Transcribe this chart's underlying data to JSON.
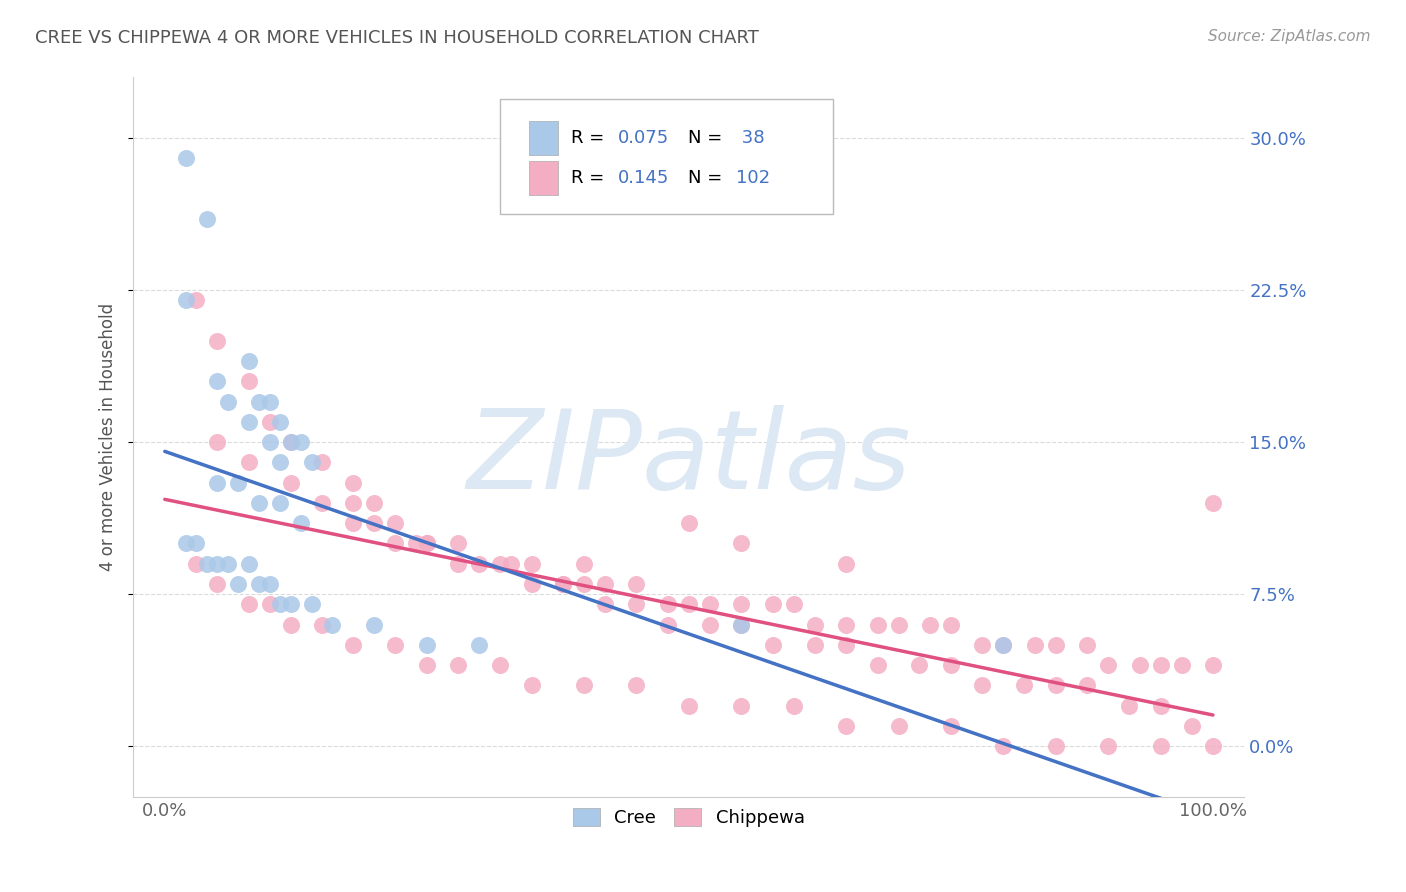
{
  "title": "CREE VS CHIPPEWA 4 OR MORE VEHICLES IN HOUSEHOLD CORRELATION CHART",
  "source": "Source: ZipAtlas.com",
  "ylabel": "4 or more Vehicles in Household",
  "cree_R": 0.075,
  "cree_N": 38,
  "chippewa_R": 0.145,
  "chippewa_N": 102,
  "cree_scatter_color": "#aac8e8",
  "cree_line_color": "#4472c4",
  "chippewa_scatter_color": "#f4aec4",
  "chippewa_line_color": "#e05080",
  "legend_color": "#4472c4",
  "bg_color": "#ffffff",
  "grid_color": "#cccccc",
  "title_color": "#555555",
  "source_color": "#999999",
  "watermark_color": "#dce8f4",
  "ytick_values": [
    0.0,
    7.5,
    15.0,
    22.5,
    30.0
  ],
  "ytick_labels": [
    "0.0%",
    "7.5%",
    "15.0%",
    "22.5%",
    "30.0%"
  ],
  "xtick_values": [
    0.0,
    100.0
  ],
  "xtick_labels": [
    "0.0%",
    "100.0%"
  ],
  "xlim": [
    -3,
    103
  ],
  "ylim": [
    -2.5,
    33
  ],
  "cree_x": [
    2,
    4,
    2,
    5,
    8,
    6,
    8,
    9,
    10,
    10,
    11,
    11,
    12,
    13,
    14,
    5,
    7,
    9,
    11,
    13,
    2,
    3,
    4,
    5,
    6,
    7,
    8,
    9,
    10,
    11,
    12,
    14,
    16,
    20,
    25,
    30,
    55,
    80
  ],
  "cree_y": [
    29,
    26,
    22,
    18,
    19,
    17,
    16,
    17,
    17,
    15,
    16,
    14,
    15,
    15,
    14,
    13,
    13,
    12,
    12,
    11,
    10,
    10,
    9,
    9,
    9,
    8,
    9,
    8,
    8,
    7,
    7,
    7,
    6,
    6,
    5,
    5,
    6,
    5
  ],
  "chippewa_x": [
    3,
    5,
    8,
    10,
    12,
    15,
    18,
    18,
    20,
    20,
    22,
    24,
    25,
    28,
    30,
    33,
    35,
    38,
    40,
    40,
    42,
    45,
    48,
    50,
    52,
    55,
    58,
    60,
    62,
    65,
    68,
    70,
    73,
    75,
    78,
    80,
    83,
    85,
    88,
    90,
    93,
    95,
    97,
    100,
    5,
    8,
    12,
    15,
    18,
    22,
    25,
    28,
    32,
    35,
    38,
    42,
    45,
    48,
    52,
    55,
    58,
    62,
    65,
    68,
    72,
    75,
    78,
    82,
    85,
    88,
    92,
    95,
    98,
    3,
    5,
    8,
    10,
    12,
    15,
    18,
    22,
    25,
    28,
    32,
    35,
    40,
    45,
    50,
    55,
    60,
    65,
    70,
    75,
    80,
    85,
    90,
    95,
    100,
    50,
    55,
    65,
    100
  ],
  "chippewa_y": [
    22,
    20,
    18,
    16,
    15,
    14,
    13,
    12,
    12,
    11,
    11,
    10,
    10,
    10,
    9,
    9,
    9,
    8,
    8,
    9,
    8,
    8,
    7,
    7,
    7,
    7,
    7,
    7,
    6,
    6,
    6,
    6,
    6,
    6,
    5,
    5,
    5,
    5,
    5,
    4,
    4,
    4,
    4,
    4,
    15,
    14,
    13,
    12,
    11,
    10,
    10,
    9,
    9,
    8,
    8,
    7,
    7,
    6,
    6,
    6,
    5,
    5,
    5,
    4,
    4,
    4,
    3,
    3,
    3,
    3,
    2,
    2,
    1,
    9,
    8,
    7,
    7,
    6,
    6,
    5,
    5,
    4,
    4,
    4,
    3,
    3,
    3,
    2,
    2,
    2,
    1,
    1,
    1,
    0,
    0,
    0,
    0,
    0,
    11,
    10,
    9,
    12
  ]
}
